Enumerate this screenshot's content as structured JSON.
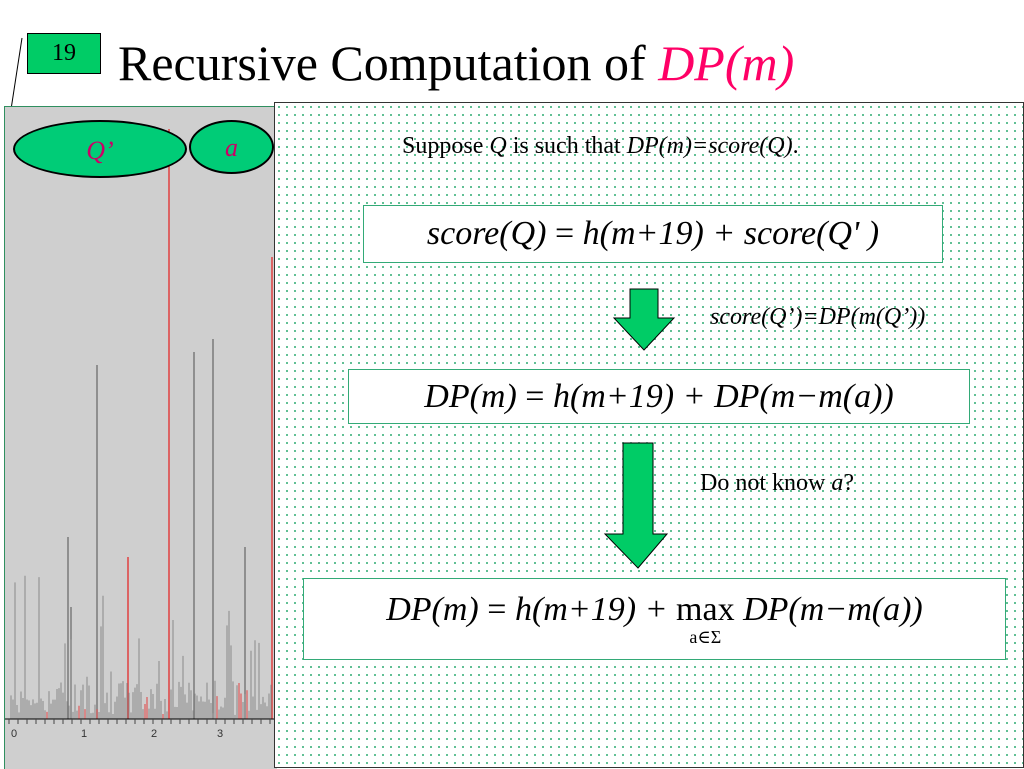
{
  "slide": {
    "number": "19",
    "title_prefix": "Recursive Computation of ",
    "title_accent": "DP(m)"
  },
  "colors": {
    "green": "#00cc66",
    "accent": "#ff0066",
    "dot": "#3ab07a",
    "spectrum_bg": "#cfcfcf",
    "peak_gray": "#7a7a7a",
    "peak_red": "#e04040"
  },
  "ellipses": {
    "left_label": "Q’",
    "right_label": "a"
  },
  "intro": {
    "t1": "Suppose ",
    "q": "Q",
    "t2": " is such that ",
    "expr": "DP(m)=score(Q)",
    "t3": "."
  },
  "equations": {
    "eq1": {
      "lhs": "score(Q)",
      "eq": " = ",
      "rhs": "h(m+19) + score(Q' )"
    },
    "eq2": {
      "lhs": "DP(m)",
      "eq": " = ",
      "rhs": "h(m+19) + DP(m−m(a))"
    },
    "eq3": {
      "lhs": "DP(m)",
      "eq": " = ",
      "mid": "h(m+19) + ",
      "op": "max",
      "op_sub": "a∈Σ",
      "rhs": " DP(m−m(a))"
    }
  },
  "notes": {
    "note1": "score(Q’)=DP(m(Q’))",
    "note2_prefix": "Do not know ",
    "note2_var": "a",
    "note2_suffix": "?"
  },
  "spectrum": {
    "axis_labels": [
      "0",
      "1",
      "2",
      "3"
    ]
  }
}
